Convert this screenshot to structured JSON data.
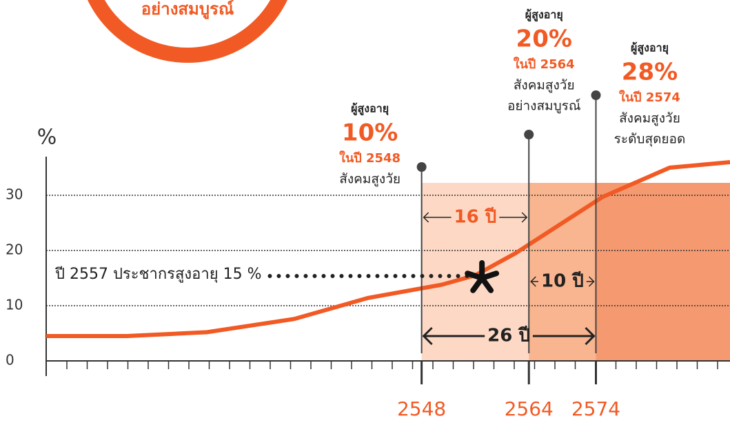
{
  "header_badge": "อย่างสมบูรณ์",
  "chart_data": {
    "type": "line",
    "y_axis_label": "%",
    "xlim": [
      2492,
      2594
    ],
    "xticks": [
      2548,
      2564,
      2574
    ],
    "ylim": [
      0,
      37
    ],
    "yticks": [
      0,
      10,
      20,
      30
    ],
    "grid": true,
    "series": [
      {
        "color": "#f15a24",
        "x": [
          2492,
          2504,
          2516,
          2529,
          2540,
          2551,
          2556,
          2562,
          2575,
          2585,
          2594
        ],
        "values": [
          4.5,
          4.5,
          5.2,
          7.6,
          11.4,
          13.8,
          15.5,
          19.5,
          29.7,
          35,
          36
        ]
      }
    ],
    "bands": [
      {
        "from": 2548,
        "to": 2564,
        "color": "#fdd9c5"
      },
      {
        "from": 2564,
        "to": 2574,
        "color": "#f9b590"
      },
      {
        "from": 2574,
        "to": 2594,
        "color": "#f59a70"
      }
    ],
    "milestones": [
      {
        "year": 2548,
        "group": "ผู้สูงอายุ",
        "share": 10,
        "share_label": "10%",
        "year_text": "ในปี 2548",
        "desc": [
          "สังคมสูงวัย"
        ]
      },
      {
        "year": 2564,
        "group": "ผู้สูงอายุ",
        "share": 20,
        "share_label": "20%",
        "year_text": "ในปี 2564",
        "desc": [
          "สังคมสูงวัย",
          "อย่างสมบูรณ์"
        ]
      },
      {
        "year": 2574,
        "group": "ผู้สูงอายุ",
        "share": 28,
        "share_label": "28%",
        "year_text": "ในปี 2574",
        "desc": [
          "สังคมสูงวัย",
          "ระดับสุดยอด"
        ]
      }
    ],
    "spans": [
      {
        "from": 2548,
        "to": 2564,
        "label": "16 ปี"
      },
      {
        "from": 2564,
        "to": 2574,
        "label": "10 ปี"
      },
      {
        "from": 2548,
        "to": 2574,
        "label": "26 ปี"
      }
    ],
    "annotation": {
      "text": "ปี 2557 ประชากรสูงอายุ 15 %",
      "x": 2557,
      "value": 15
    }
  }
}
